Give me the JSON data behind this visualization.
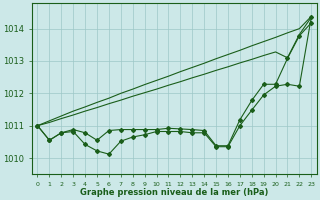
{
  "xlabel": "Graphe pression niveau de la mer (hPa)",
  "background_color": "#cce8e8",
  "grid_color": "#9ec8c8",
  "line_color": "#1a5e1a",
  "ylim": [
    1009.5,
    1014.8
  ],
  "xlim": [
    -0.5,
    23.5
  ],
  "yticks": [
    1010,
    1011,
    1012,
    1013,
    1014
  ],
  "xticks": [
    0,
    1,
    2,
    3,
    4,
    5,
    6,
    7,
    8,
    9,
    10,
    11,
    12,
    13,
    14,
    15,
    16,
    17,
    18,
    19,
    20,
    21,
    22,
    23
  ],
  "line_straight_upper": [
    1011.0,
    1011.15,
    1011.3,
    1011.45,
    1011.58,
    1011.72,
    1011.85,
    1012.0,
    1012.13,
    1012.27,
    1012.4,
    1012.53,
    1012.67,
    1012.8,
    1012.93,
    1013.07,
    1013.2,
    1013.33,
    1013.47,
    1013.6,
    1013.73,
    1013.87,
    1014.0,
    1014.38
  ],
  "line_straight_lower": [
    1011.0,
    1011.1,
    1011.22,
    1011.33,
    1011.45,
    1011.56,
    1011.68,
    1011.79,
    1011.91,
    1012.02,
    1012.13,
    1012.25,
    1012.36,
    1012.48,
    1012.59,
    1012.71,
    1012.82,
    1012.94,
    1013.05,
    1013.17,
    1013.28,
    1013.1,
    1013.82,
    1014.35
  ],
  "line_mid_wavy": [
    1011.0,
    1010.55,
    1010.78,
    1010.88,
    1010.78,
    1010.55,
    1010.85,
    1010.88,
    1010.88,
    1010.88,
    1010.88,
    1010.92,
    1010.9,
    1010.88,
    1010.85,
    1010.38,
    1010.38,
    1011.18,
    1011.78,
    1012.28,
    1012.28,
    1013.08,
    1013.78,
    1014.18
  ],
  "line_bottom_wavy": [
    1011.0,
    1010.55,
    1010.78,
    1010.82,
    1010.42,
    1010.22,
    1010.12,
    1010.52,
    1010.65,
    1010.72,
    1010.82,
    1010.82,
    1010.82,
    1010.78,
    1010.78,
    1010.35,
    1010.35,
    1011.0,
    1011.48,
    1011.95,
    1012.22,
    1012.28,
    1012.22,
    1014.35
  ],
  "marker": "D",
  "markersize": 2.0,
  "linewidth": 0.8
}
